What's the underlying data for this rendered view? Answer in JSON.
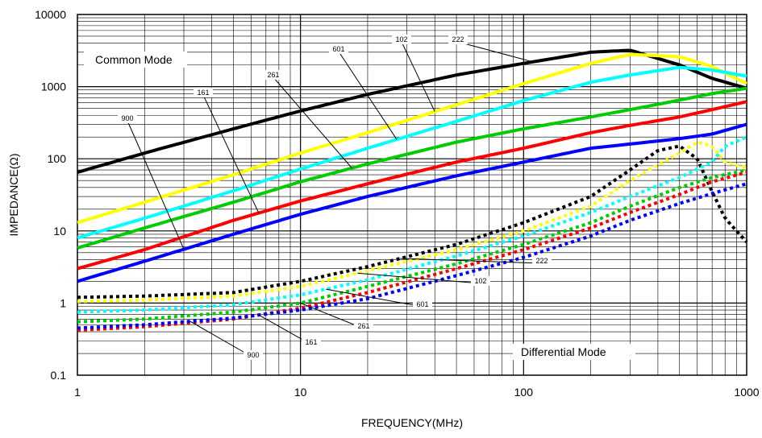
{
  "chart_data": {
    "type": "line",
    "xscale": "log",
    "yscale": "log",
    "xlim": [
      1,
      1000
    ],
    "ylim": [
      0.1,
      10000
    ],
    "xlabel": "FREQUENCY(MHz)",
    "ylabel": "IMPEDANCE(Ω)",
    "grid": true,
    "x_tick_labels": [
      "1",
      "10",
      "100",
      "1000"
    ],
    "y_tick_labels": [
      "0.1",
      "1",
      "10",
      "100",
      "1000",
      "10000"
    ],
    "annotations": {
      "common_mode": "Common Mode",
      "differential_mode": "Differential Mode"
    },
    "series": [
      {
        "name": "222",
        "mode": "common",
        "style": "solid",
        "color": "#000000",
        "x": [
          1,
          2,
          5,
          10,
          20,
          50,
          100,
          200,
          300,
          500,
          700,
          1000
        ],
        "y": [
          65,
          120,
          260,
          460,
          780,
          1450,
          2100,
          3000,
          3200,
          2000,
          1300,
          950
        ]
      },
      {
        "name": "102",
        "mode": "common",
        "style": "solid",
        "color": "#ffff00",
        "x": [
          1,
          2,
          5,
          10,
          20,
          50,
          100,
          200,
          300,
          500,
          700,
          1000
        ],
        "y": [
          13,
          25,
          60,
          120,
          230,
          560,
          1100,
          2100,
          2800,
          2600,
          1900,
          1100
        ]
      },
      {
        "name": "601",
        "mode": "common",
        "style": "solid",
        "color": "#00ffff",
        "x": [
          1,
          2,
          5,
          10,
          20,
          50,
          100,
          200,
          300,
          500,
          700,
          1000
        ],
        "y": [
          8,
          15,
          36,
          72,
          140,
          330,
          640,
          1150,
          1450,
          1850,
          1700,
          1400
        ]
      },
      {
        "name": "261",
        "mode": "common",
        "style": "solid",
        "color": "#00cc00",
        "x": [
          1,
          2,
          5,
          10,
          20,
          50,
          100,
          200,
          300,
          500,
          700,
          1000
        ],
        "y": [
          5.8,
          11,
          25,
          48,
          85,
          170,
          260,
          380,
          480,
          650,
          800,
          950
        ]
      },
      {
        "name": "161",
        "mode": "common",
        "style": "solid",
        "color": "#ff0000",
        "x": [
          1,
          2,
          5,
          10,
          20,
          50,
          100,
          200,
          300,
          500,
          700,
          1000
        ],
        "y": [
          3,
          5.5,
          14,
          26,
          45,
          90,
          140,
          230,
          290,
          380,
          480,
          620
        ]
      },
      {
        "name": "900",
        "mode": "common",
        "style": "solid",
        "color": "#0000ff",
        "x": [
          1,
          2,
          5,
          10,
          20,
          50,
          100,
          200,
          300,
          500,
          700,
          1000
        ],
        "y": [
          2,
          3.8,
          9,
          17,
          30,
          58,
          90,
          140,
          160,
          190,
          220,
          300
        ]
      },
      {
        "name": "222",
        "mode": "differential",
        "style": "dotted",
        "color": "#000000",
        "x": [
          1,
          2,
          5,
          10,
          20,
          50,
          100,
          200,
          300,
          400,
          500,
          600,
          700,
          800,
          1000
        ],
        "y": [
          1.2,
          1.25,
          1.4,
          2,
          3.2,
          6.5,
          13,
          30,
          70,
          130,
          150,
          100,
          35,
          15,
          7
        ]
      },
      {
        "name": "102",
        "mode": "differential",
        "style": "dotted",
        "color": "#ffff00",
        "x": [
          1,
          2,
          5,
          10,
          20,
          50,
          100,
          200,
          300,
          500,
          600,
          700,
          800,
          1000
        ],
        "y": [
          1.05,
          1.1,
          1.25,
          1.7,
          2.8,
          5.5,
          10,
          22,
          50,
          120,
          170,
          150,
          90,
          75
        ]
      },
      {
        "name": "601",
        "mode": "differential",
        "style": "dotted",
        "color": "#00ffff",
        "x": [
          1,
          2,
          5,
          10,
          20,
          50,
          100,
          200,
          300,
          500,
          700,
          800,
          1000
        ],
        "y": [
          0.75,
          0.8,
          0.95,
          1.3,
          2.1,
          4.5,
          8.5,
          18,
          30,
          55,
          90,
          150,
          200
        ]
      },
      {
        "name": "261",
        "mode": "differential",
        "style": "dotted",
        "color": "#00cc00",
        "x": [
          1,
          2,
          5,
          10,
          20,
          50,
          100,
          200,
          300,
          500,
          700,
          1000
        ],
        "y": [
          0.55,
          0.6,
          0.75,
          1,
          1.7,
          3.5,
          6.5,
          13,
          22,
          40,
          55,
          70
        ]
      },
      {
        "name": "161",
        "mode": "differential",
        "style": "dotted",
        "color": "#ff0000",
        "x": [
          1,
          2,
          5,
          10,
          20,
          50,
          100,
          200,
          300,
          500,
          700,
          1000
        ],
        "y": [
          0.42,
          0.47,
          0.6,
          0.85,
          1.4,
          3,
          5.5,
          11,
          18,
          32,
          48,
          65
        ]
      },
      {
        "name": "900",
        "mode": "differential",
        "style": "dotted",
        "color": "#0000ff",
        "x": [
          1,
          2,
          5,
          10,
          20,
          50,
          100,
          200,
          300,
          500,
          700,
          1000
        ],
        "y": [
          0.45,
          0.5,
          0.62,
          0.8,
          1.15,
          2.4,
          4.3,
          8.5,
          14,
          24,
          33,
          45
        ]
      }
    ],
    "callouts": [
      {
        "label": "222",
        "mode": "common"
      },
      {
        "label": "102",
        "mode": "common"
      },
      {
        "label": "601",
        "mode": "common"
      },
      {
        "label": "261",
        "mode": "common"
      },
      {
        "label": "161",
        "mode": "common"
      },
      {
        "label": "900",
        "mode": "common"
      },
      {
        "label": "222",
        "mode": "differential"
      },
      {
        "label": "102",
        "mode": "differential"
      },
      {
        "label": "601",
        "mode": "differential"
      },
      {
        "label": "261",
        "mode": "differential"
      },
      {
        "label": "161",
        "mode": "differential"
      },
      {
        "label": "900",
        "mode": "differential"
      }
    ]
  }
}
